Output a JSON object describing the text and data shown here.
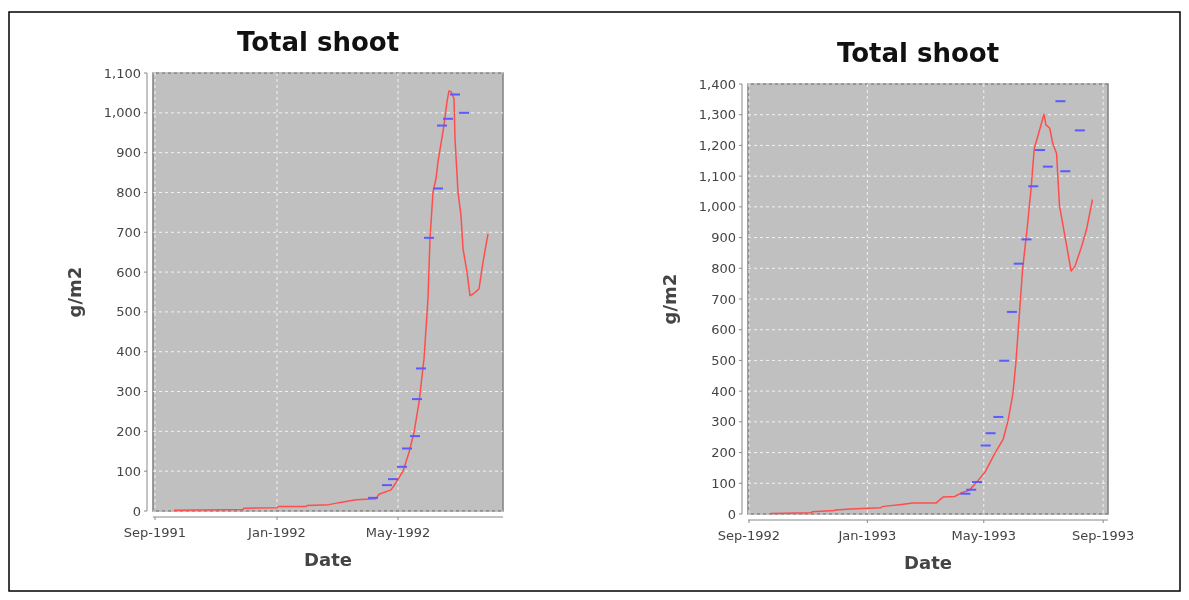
{
  "chart_data": [
    {
      "type": "line",
      "title": "Total shoot",
      "xlabel": "Date",
      "ylabel": "g/m2",
      "xlim": [
        "1991-08-30",
        "1992-08-14"
      ],
      "ylim": [
        0,
        1100
      ],
      "xticks": [
        {
          "value": "1991-09-01",
          "label": "Sep-1991"
        },
        {
          "value": "1992-01-01",
          "label": "Jan-1992"
        },
        {
          "value": "1992-05-01",
          "label": "May-1992"
        }
      ],
      "yticks": [
        0,
        100,
        200,
        300,
        400,
        500,
        600,
        700,
        800,
        900,
        {
          "value": 1000,
          "label": "1,000"
        },
        {
          "value": 1100,
          "label": "1,100"
        }
      ],
      "grid": true,
      "series": [
        {
          "color": "#ff4d4d",
          "x": [
            "1991-09-20",
            "1991-11-28",
            "1991-11-29",
            "1992-01-01",
            "1992-01-02",
            "1992-01-30",
            "1992-01-31",
            "1992-02-22",
            "1992-03-03",
            "1992-03-20",
            "1992-04-09",
            "1992-04-12",
            "1992-04-24",
            "1992-04-29",
            "1992-05-06",
            "1992-05-12",
            "1992-05-17",
            "1992-05-22",
            "1992-05-27",
            "1992-05-31",
            "1992-06-02",
            "1992-06-05",
            "1992-06-08",
            "1992-06-10",
            "1992-06-16",
            "1992-06-19",
            "1992-06-21",
            "1992-06-23",
            "1992-06-26",
            "1992-06-27",
            "1992-06-30",
            "1992-07-03",
            "1992-07-05",
            "1992-07-09",
            "1992-07-12",
            "1992-07-15",
            "1992-07-18",
            "1992-07-21",
            "1992-07-25",
            "1992-07-30"
          ],
          "values": [
            2,
            4,
            7,
            8,
            11,
            11,
            14,
            16,
            21,
            28,
            31,
            42,
            53,
            71,
            100,
            147,
            197,
            273,
            382,
            533,
            684,
            801,
            835,
            877,
            969,
            1028,
            1055,
            1053,
            1036,
            935,
            801,
            742,
            659,
            600,
            541,
            545,
            551,
            558,
            625,
            696
          ]
        },
        {
          "type": "scatter",
          "color": "#5a5aff",
          "x": [
            "1992-04-06",
            "1992-04-20",
            "1992-04-26",
            "1992-05-05",
            "1992-05-10",
            "1992-05-18",
            "1992-05-20",
            "1992-05-24",
            "1992-06-01",
            "1992-06-10",
            "1992-06-14",
            "1992-06-20",
            "1992-06-27",
            "1992-07-06"
          ],
          "values": [
            33,
            65,
            80,
            111,
            157,
            188,
            281,
            358,
            686,
            810,
            968,
            985,
            1046,
            1000
          ]
        }
      ]
    },
    {
      "type": "line",
      "title": "Total shoot",
      "xlabel": "Date",
      "ylabel": "g/m2",
      "xlim": [
        "1992-08-31",
        "1993-09-06"
      ],
      "ylim": [
        0,
        1400
      ],
      "xticks": [
        {
          "value": "1992-09-01",
          "label": "Sep-1992"
        },
        {
          "value": "1993-01-01",
          "label": "Jan-1993"
        },
        {
          "value": "1993-05-01",
          "label": "May-1993"
        },
        {
          "value": "1993-09-01",
          "label": "Sep-1993"
        }
      ],
      "yticks": [
        0,
        100,
        200,
        300,
        400,
        500,
        600,
        700,
        800,
        900,
        {
          "value": 1000,
          "label": "1,000"
        },
        {
          "value": 1100,
          "label": "1,100"
        },
        {
          "value": 1200,
          "label": "1,200"
        },
        {
          "value": 1300,
          "label": "1,300"
        },
        {
          "value": 1400,
          "label": "1,400"
        }
      ],
      "grid": true,
      "series": [
        {
          "color": "#ff4d4d",
          "x": [
            "1992-09-23",
            "1992-11-04",
            "1992-11-05",
            "1992-11-28",
            "1992-11-29",
            "1992-12-15",
            "1993-01-15",
            "1993-01-16",
            "1993-02-05",
            "1993-02-17",
            "1993-03-13",
            "1993-03-20",
            "1993-04-01",
            "1993-04-08",
            "1993-04-16",
            "1993-04-21",
            "1993-05-02",
            "1993-05-12",
            "1993-05-21",
            "1993-05-26",
            "1993-05-31",
            "1993-06-03",
            "1993-06-07",
            "1993-06-10",
            "1993-06-15",
            "1993-06-19",
            "1993-06-22",
            "1993-06-28",
            "1993-07-02",
            "1993-07-04",
            "1993-07-08",
            "1993-07-11",
            "1993-07-15",
            "1993-07-18",
            "1993-07-22",
            "1993-07-26",
            "1993-07-30",
            "1993-08-03",
            "1993-08-10",
            "1993-08-15",
            "1993-08-21"
          ],
          "values": [
            2,
            4,
            7,
            11,
            13,
            16,
            20,
            24,
            31,
            36,
            36,
            55,
            57,
            69,
            77,
            94,
            135,
            195,
            244,
            304,
            392,
            490,
            665,
            797,
            939,
            1070,
            1190,
            1256,
            1302,
            1267,
            1256,
            1207,
            1174,
            1004,
            933,
            862,
            791,
            807,
            873,
            928,
            1024
          ]
        },
        {
          "type": "scatter",
          "color": "#5a5aff",
          "x": [
            "1993-04-12",
            "1993-04-18",
            "1993-04-24",
            "1993-05-03",
            "1993-05-08",
            "1993-05-16",
            "1993-05-22",
            "1993-05-30",
            "1993-06-06",
            "1993-06-14",
            "1993-06-21",
            "1993-06-28",
            "1993-07-06",
            "1993-07-19",
            "1993-07-24",
            "1993-08-08"
          ],
          "values": [
            66,
            79,
            104,
            223,
            263,
            316,
            499,
            658,
            815,
            894,
            1067,
            1185,
            1131,
            1344,
            1116,
            1249
          ]
        }
      ]
    }
  ]
}
